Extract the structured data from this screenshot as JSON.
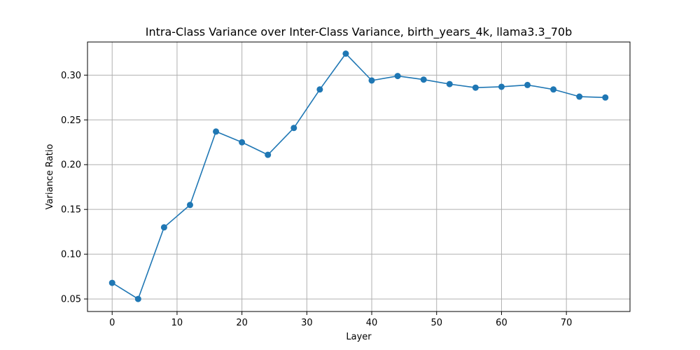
{
  "chart_data": {
    "type": "line",
    "title": "Intra-Class Variance over Inter-Class Variance, birth_years_4k, llama3.3_70b",
    "xlabel": "Layer",
    "ylabel": "Variance Ratio",
    "xlim": [
      -3.8,
      79.8
    ],
    "ylim": [
      0.036,
      0.337
    ],
    "xticks": [
      0,
      10,
      20,
      30,
      40,
      50,
      60,
      70
    ],
    "xtick_labels": [
      "0",
      "10",
      "20",
      "30",
      "40",
      "50",
      "60",
      "70"
    ],
    "yticks": [
      0.05,
      0.1,
      0.15,
      0.2,
      0.25,
      0.3
    ],
    "ytick_labels": [
      "0.05",
      "0.10",
      "0.15",
      "0.20",
      "0.25",
      "0.30"
    ],
    "grid": true,
    "series": [
      {
        "color": "#1f77b4",
        "marker": "circle",
        "x": [
          0,
          4,
          8,
          12,
          16,
          20,
          24,
          28,
          32,
          36,
          40,
          44,
          48,
          52,
          56,
          60,
          64,
          68,
          72,
          76
        ],
        "y": [
          0.068,
          0.05,
          0.13,
          0.155,
          0.237,
          0.225,
          0.211,
          0.241,
          0.284,
          0.324,
          0.294,
          0.299,
          0.295,
          0.29,
          0.286,
          0.287,
          0.289,
          0.284,
          0.276,
          0.275
        ]
      }
    ]
  }
}
